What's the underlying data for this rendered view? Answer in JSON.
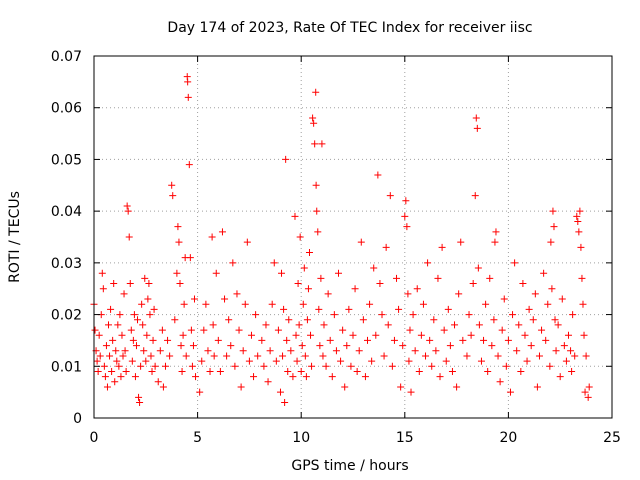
{
  "chart_data": {
    "type": "scatter",
    "title": "Day 174 of 2023, Rate Of TEC Index for receiver iisc",
    "xlabel": "GPS time / hours",
    "ylabel": "ROTI / TECUs",
    "xlim": [
      0,
      25
    ],
    "ylim": [
      0,
      0.07
    ],
    "x_ticks": [
      "0",
      "5",
      "10",
      "15",
      "20",
      "25"
    ],
    "y_ticks": [
      "0",
      "0.01",
      "0.02",
      "0.03",
      "0.04",
      "0.05",
      "0.06",
      "0.07"
    ],
    "x_tick_values": [
      0,
      5,
      10,
      15,
      20,
      25
    ],
    "y_tick_values": [
      0,
      0.01,
      0.02,
      0.03,
      0.04,
      0.05,
      0.06,
      0.07
    ],
    "grid": true,
    "marker": "+",
    "color": "#ff0000",
    "series": [
      {
        "points": [
          [
            0.0,
            0.022
          ],
          [
            0.05,
            0.017
          ],
          [
            0.1,
            0.013
          ],
          [
            0.15,
            0.011
          ],
          [
            0.2,
            0.009
          ],
          [
            0.25,
            0.016
          ],
          [
            0.3,
            0.012
          ],
          [
            0.35,
            0.02
          ],
          [
            0.4,
            0.028
          ],
          [
            0.45,
            0.025
          ],
          [
            0.5,
            0.01
          ],
          [
            0.55,
            0.008
          ],
          [
            0.6,
            0.014
          ],
          [
            0.65,
            0.006
          ],
          [
            0.7,
            0.018
          ],
          [
            0.75,
            0.012
          ],
          [
            0.8,
            0.021
          ],
          [
            0.85,
            0.009
          ],
          [
            0.9,
            0.015
          ],
          [
            0.95,
            0.026
          ],
          [
            1.0,
            0.007
          ],
          [
            1.05,
            0.013
          ],
          [
            1.1,
            0.011
          ],
          [
            1.15,
            0.018
          ],
          [
            1.2,
            0.01
          ],
          [
            1.25,
            0.02
          ],
          [
            1.3,
            0.008
          ],
          [
            1.35,
            0.016
          ],
          [
            1.4,
            0.012
          ],
          [
            1.45,
            0.024
          ],
          [
            1.5,
            0.013
          ],
          [
            1.55,
            0.009
          ],
          [
            1.6,
            0.041
          ],
          [
            1.65,
            0.04
          ],
          [
            1.7,
            0.035
          ],
          [
            1.75,
            0.026
          ],
          [
            1.8,
            0.017
          ],
          [
            1.85,
            0.011
          ],
          [
            1.9,
            0.015
          ],
          [
            1.95,
            0.02
          ],
          [
            2.0,
            0.008
          ],
          [
            2.05,
            0.014
          ],
          [
            2.1,
            0.019
          ],
          [
            2.15,
            0.004
          ],
          [
            2.2,
            0.003
          ],
          [
            2.25,
            0.01
          ],
          [
            2.3,
            0.022
          ],
          [
            2.35,
            0.018
          ],
          [
            2.4,
            0.013
          ],
          [
            2.45,
            0.027
          ],
          [
            2.5,
            0.011
          ],
          [
            2.55,
            0.016
          ],
          [
            2.6,
            0.023
          ],
          [
            2.65,
            0.026
          ],
          [
            2.7,
            0.02
          ],
          [
            2.75,
            0.012
          ],
          [
            2.8,
            0.009
          ],
          [
            2.85,
            0.015
          ],
          [
            2.9,
            0.021
          ],
          [
            2.95,
            0.01
          ],
          [
            3.1,
            0.007
          ],
          [
            3.2,
            0.013
          ],
          [
            3.3,
            0.017
          ],
          [
            3.35,
            0.006
          ],
          [
            3.45,
            0.01
          ],
          [
            3.55,
            0.015
          ],
          [
            3.65,
            0.012
          ],
          [
            3.75,
            0.045
          ],
          [
            3.8,
            0.043
          ],
          [
            3.9,
            0.019
          ],
          [
            4.0,
            0.028
          ],
          [
            4.05,
            0.037
          ],
          [
            4.1,
            0.034
          ],
          [
            4.15,
            0.026
          ],
          [
            4.2,
            0.014
          ],
          [
            4.25,
            0.009
          ],
          [
            4.3,
            0.016
          ],
          [
            4.35,
            0.022
          ],
          [
            4.4,
            0.031
          ],
          [
            4.45,
            0.012
          ],
          [
            4.5,
            0.066
          ],
          [
            4.52,
            0.065
          ],
          [
            4.55,
            0.062
          ],
          [
            4.6,
            0.049
          ],
          [
            4.65,
            0.031
          ],
          [
            4.7,
            0.017
          ],
          [
            4.75,
            0.01
          ],
          [
            4.8,
            0.014
          ],
          [
            4.85,
            0.023
          ],
          [
            4.9,
            0.008
          ],
          [
            5.1,
            0.005
          ],
          [
            5.2,
            0.011
          ],
          [
            5.3,
            0.017
          ],
          [
            5.4,
            0.022
          ],
          [
            5.5,
            0.013
          ],
          [
            5.6,
            0.009
          ],
          [
            5.7,
            0.035
          ],
          [
            5.75,
            0.018
          ],
          [
            5.8,
            0.012
          ],
          [
            5.9,
            0.028
          ],
          [
            6.0,
            0.015
          ],
          [
            6.1,
            0.009
          ],
          [
            6.2,
            0.036
          ],
          [
            6.3,
            0.023
          ],
          [
            6.4,
            0.012
          ],
          [
            6.5,
            0.019
          ],
          [
            6.6,
            0.014
          ],
          [
            6.7,
            0.03
          ],
          [
            6.8,
            0.01
          ],
          [
            6.9,
            0.024
          ],
          [
            7.0,
            0.017
          ],
          [
            7.1,
            0.006
          ],
          [
            7.2,
            0.013
          ],
          [
            7.3,
            0.022
          ],
          [
            7.4,
            0.034
          ],
          [
            7.5,
            0.011
          ],
          [
            7.6,
            0.016
          ],
          [
            7.7,
            0.008
          ],
          [
            7.8,
            0.02
          ],
          [
            7.9,
            0.012
          ],
          [
            8.1,
            0.015
          ],
          [
            8.2,
            0.01
          ],
          [
            8.3,
            0.018
          ],
          [
            8.4,
            0.007
          ],
          [
            8.5,
            0.013
          ],
          [
            8.6,
            0.022
          ],
          [
            8.7,
            0.03
          ],
          [
            8.8,
            0.011
          ],
          [
            8.9,
            0.017
          ],
          [
            9.0,
            0.005
          ],
          [
            9.05,
            0.028
          ],
          [
            9.1,
            0.012
          ],
          [
            9.15,
            0.021
          ],
          [
            9.2,
            0.003
          ],
          [
            9.25,
            0.05
          ],
          [
            9.3,
            0.015
          ],
          [
            9.35,
            0.009
          ],
          [
            9.4,
            0.019
          ],
          [
            9.5,
            0.013
          ],
          [
            9.6,
            0.008
          ],
          [
            9.7,
            0.039
          ],
          [
            9.75,
            0.016
          ],
          [
            9.8,
            0.011
          ],
          [
            9.85,
            0.026
          ],
          [
            9.9,
            0.018
          ],
          [
            9.95,
            0.035
          ],
          [
            10.0,
            0.009
          ],
          [
            10.05,
            0.014
          ],
          [
            10.1,
            0.022
          ],
          [
            10.15,
            0.029
          ],
          [
            10.2,
            0.012
          ],
          [
            10.25,
            0.008
          ],
          [
            10.3,
            0.019
          ],
          [
            10.35,
            0.025
          ],
          [
            10.4,
            0.032
          ],
          [
            10.45,
            0.016
          ],
          [
            10.5,
            0.01
          ],
          [
            10.55,
            0.058
          ],
          [
            10.6,
            0.057
          ],
          [
            10.65,
            0.053
          ],
          [
            10.7,
            0.063
          ],
          [
            10.72,
            0.045
          ],
          [
            10.75,
            0.04
          ],
          [
            10.8,
            0.036
          ],
          [
            10.85,
            0.021
          ],
          [
            10.9,
            0.014
          ],
          [
            10.95,
            0.027
          ],
          [
            11.0,
            0.053
          ],
          [
            11.05,
            0.012
          ],
          [
            11.1,
            0.018
          ],
          [
            11.2,
            0.01
          ],
          [
            11.3,
            0.024
          ],
          [
            11.4,
            0.015
          ],
          [
            11.5,
            0.008
          ],
          [
            11.6,
            0.02
          ],
          [
            11.7,
            0.013
          ],
          [
            11.8,
            0.028
          ],
          [
            11.9,
            0.011
          ],
          [
            12.0,
            0.017
          ],
          [
            12.1,
            0.006
          ],
          [
            12.2,
            0.014
          ],
          [
            12.3,
            0.021
          ],
          [
            12.4,
            0.01
          ],
          [
            12.5,
            0.016
          ],
          [
            12.6,
            0.025
          ],
          [
            12.7,
            0.009
          ],
          [
            12.8,
            0.013
          ],
          [
            12.9,
            0.034
          ],
          [
            13.0,
            0.019
          ],
          [
            13.1,
            0.008
          ],
          [
            13.2,
            0.015
          ],
          [
            13.3,
            0.022
          ],
          [
            13.4,
            0.011
          ],
          [
            13.5,
            0.029
          ],
          [
            13.6,
            0.016
          ],
          [
            13.7,
            0.047
          ],
          [
            13.8,
            0.026
          ],
          [
            13.9,
            0.02
          ],
          [
            14.0,
            0.012
          ],
          [
            14.1,
            0.033
          ],
          [
            14.2,
            0.018
          ],
          [
            14.3,
            0.043
          ],
          [
            14.4,
            0.01
          ],
          [
            14.5,
            0.015
          ],
          [
            14.6,
            0.027
          ],
          [
            14.7,
            0.021
          ],
          [
            14.8,
            0.006
          ],
          [
            14.9,
            0.014
          ],
          [
            15.0,
            0.039
          ],
          [
            15.05,
            0.042
          ],
          [
            15.1,
            0.037
          ],
          [
            15.15,
            0.024
          ],
          [
            15.2,
            0.011
          ],
          [
            15.25,
            0.017
          ],
          [
            15.3,
            0.005
          ],
          [
            15.4,
            0.02
          ],
          [
            15.5,
            0.013
          ],
          [
            15.6,
            0.025
          ],
          [
            15.7,
            0.009
          ],
          [
            15.8,
            0.016
          ],
          [
            15.9,
            0.022
          ],
          [
            16.0,
            0.012
          ],
          [
            16.1,
            0.03
          ],
          [
            16.2,
            0.015
          ],
          [
            16.3,
            0.01
          ],
          [
            16.4,
            0.019
          ],
          [
            16.5,
            0.013
          ],
          [
            16.6,
            0.027
          ],
          [
            16.7,
            0.008
          ],
          [
            16.8,
            0.033
          ],
          [
            16.9,
            0.017
          ],
          [
            17.0,
            0.011
          ],
          [
            17.1,
            0.021
          ],
          [
            17.2,
            0.014
          ],
          [
            17.3,
            0.009
          ],
          [
            17.4,
            0.018
          ],
          [
            17.5,
            0.006
          ],
          [
            17.6,
            0.024
          ],
          [
            17.7,
            0.034
          ],
          [
            17.8,
            0.015
          ],
          [
            18.0,
            0.012
          ],
          [
            18.1,
            0.02
          ],
          [
            18.2,
            0.016
          ],
          [
            18.3,
            0.026
          ],
          [
            18.4,
            0.043
          ],
          [
            18.45,
            0.058
          ],
          [
            18.5,
            0.056
          ],
          [
            18.55,
            0.029
          ],
          [
            18.6,
            0.018
          ],
          [
            18.7,
            0.011
          ],
          [
            18.8,
            0.015
          ],
          [
            18.9,
            0.022
          ],
          [
            19.0,
            0.009
          ],
          [
            19.1,
            0.027
          ],
          [
            19.2,
            0.014
          ],
          [
            19.3,
            0.019
          ],
          [
            19.35,
            0.034
          ],
          [
            19.4,
            0.036
          ],
          [
            19.5,
            0.012
          ],
          [
            19.6,
            0.007
          ],
          [
            19.7,
            0.017
          ],
          [
            19.8,
            0.023
          ],
          [
            19.9,
            0.01
          ],
          [
            20.0,
            0.015
          ],
          [
            20.1,
            0.005
          ],
          [
            20.2,
            0.02
          ],
          [
            20.3,
            0.03
          ],
          [
            20.4,
            0.013
          ],
          [
            20.5,
            0.018
          ],
          [
            20.6,
            0.009
          ],
          [
            20.7,
            0.026
          ],
          [
            20.8,
            0.016
          ],
          [
            20.9,
            0.011
          ],
          [
            21.0,
            0.021
          ],
          [
            21.1,
            0.014
          ],
          [
            21.2,
            0.019
          ],
          [
            21.3,
            0.024
          ],
          [
            21.4,
            0.006
          ],
          [
            21.5,
            0.012
          ],
          [
            21.6,
            0.017
          ],
          [
            21.7,
            0.028
          ],
          [
            21.8,
            0.015
          ],
          [
            21.9,
            0.022
          ],
          [
            22.0,
            0.01
          ],
          [
            22.05,
            0.034
          ],
          [
            22.1,
            0.025
          ],
          [
            22.15,
            0.04
          ],
          [
            22.2,
            0.037
          ],
          [
            22.25,
            0.019
          ],
          [
            22.3,
            0.013
          ],
          [
            22.4,
            0.018
          ],
          [
            22.5,
            0.008
          ],
          [
            22.6,
            0.023
          ],
          [
            22.7,
            0.014
          ],
          [
            22.8,
            0.011
          ],
          [
            22.9,
            0.016
          ],
          [
            23.0,
            0.013
          ],
          [
            23.05,
            0.009
          ],
          [
            23.1,
            0.02
          ],
          [
            23.2,
            0.012
          ],
          [
            23.3,
            0.039
          ],
          [
            23.35,
            0.038
          ],
          [
            23.4,
            0.036
          ],
          [
            23.45,
            0.04
          ],
          [
            23.5,
            0.033
          ],
          [
            23.55,
            0.027
          ],
          [
            23.6,
            0.022
          ],
          [
            23.65,
            0.016
          ],
          [
            23.7,
            0.005
          ],
          [
            23.75,
            0.012
          ],
          [
            23.85,
            0.004
          ],
          [
            23.9,
            0.006
          ]
        ]
      }
    ]
  }
}
